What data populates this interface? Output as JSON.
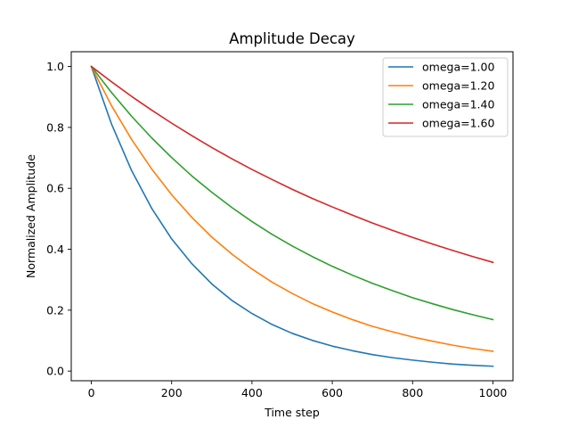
{
  "chart_data": {
    "type": "line",
    "title": "Amplitude Decay",
    "xlabel": "Time step",
    "ylabel": "Normalized Amplitude",
    "xlim": [
      -50,
      1050
    ],
    "ylim": [
      -0.0317,
      1.0485
    ],
    "xticks": [
      0,
      200,
      400,
      600,
      800,
      1000
    ],
    "yticks": [
      0.0,
      0.2,
      0.4,
      0.6,
      0.8,
      1.0
    ],
    "xtick_labels": [
      "0",
      "200",
      "400",
      "600",
      "800",
      "1000"
    ],
    "ytick_labels": [
      "0.0",
      "0.2",
      "0.4",
      "0.6",
      "0.8",
      "1.0"
    ],
    "grid": false,
    "legend": "top-right",
    "series": [
      {
        "name": "omega=1.00",
        "color": "#1f77b4",
        "x": [
          0,
          50,
          100,
          150,
          200,
          250,
          300,
          350,
          400,
          450,
          500,
          550,
          600,
          650,
          700,
          750,
          800,
          850,
          900,
          950,
          1000
        ],
        "y": [
          1.0,
          0.812,
          0.659,
          0.535,
          0.434,
          0.353,
          0.286,
          0.232,
          0.189,
          0.153,
          0.124,
          0.101,
          0.082,
          0.067,
          0.054,
          0.044,
          0.036,
          0.029,
          0.023,
          0.019,
          0.016
        ]
      },
      {
        "name": "omega=1.20",
        "color": "#ff7f0e",
        "x": [
          0,
          50,
          100,
          150,
          200,
          250,
          300,
          350,
          400,
          450,
          500,
          550,
          600,
          650,
          700,
          750,
          800,
          850,
          900,
          950,
          1000
        ],
        "y": [
          1.0,
          0.872,
          0.761,
          0.664,
          0.579,
          0.505,
          0.44,
          0.384,
          0.335,
          0.292,
          0.255,
          0.222,
          0.194,
          0.169,
          0.147,
          0.129,
          0.112,
          0.098,
          0.085,
          0.074,
          0.065
        ]
      },
      {
        "name": "omega=1.40",
        "color": "#2ca02c",
        "x": [
          0,
          50,
          100,
          150,
          200,
          250,
          300,
          350,
          400,
          450,
          500,
          550,
          600,
          650,
          700,
          750,
          800,
          850,
          900,
          950,
          1000
        ],
        "y": [
          1.0,
          0.915,
          0.837,
          0.766,
          0.701,
          0.641,
          0.587,
          0.537,
          0.491,
          0.449,
          0.411,
          0.376,
          0.344,
          0.315,
          0.288,
          0.264,
          0.241,
          0.221,
          0.202,
          0.185,
          0.169
        ]
      },
      {
        "name": "omega=1.60",
        "color": "#d62728",
        "x": [
          0,
          50,
          100,
          150,
          200,
          250,
          300,
          350,
          400,
          450,
          500,
          550,
          600,
          650,
          700,
          750,
          800,
          850,
          900,
          950,
          1000
        ],
        "y": [
          1.0,
          0.95,
          0.902,
          0.857,
          0.814,
          0.773,
          0.734,
          0.697,
          0.662,
          0.629,
          0.597,
          0.567,
          0.539,
          0.512,
          0.486,
          0.462,
          0.439,
          0.417,
          0.396,
          0.376,
          0.357
        ]
      }
    ]
  }
}
